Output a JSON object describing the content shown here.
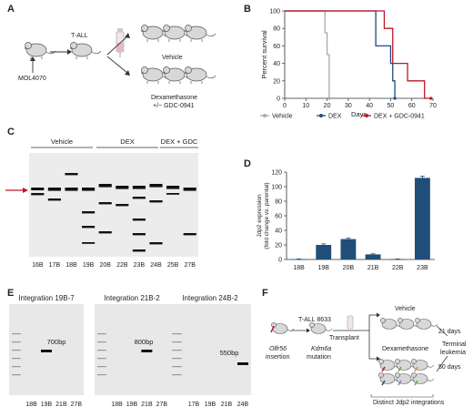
{
  "panels": {
    "A": "A",
    "B": "B",
    "C": "C",
    "D": "D",
    "E": "E",
    "F": "F"
  },
  "panelA": {
    "mol": "MOL4070",
    "tall": "T-ALL",
    "vehicle": "Vehicle",
    "dex": "Dexamethasone",
    "gdc": "+/− GDC-0941"
  },
  "chart_data": [
    {
      "type": "line",
      "ylabel": "Percent survival",
      "xlabel": "Days",
      "xlim": [
        0,
        70
      ],
      "ylim": [
        0,
        100
      ],
      "xticks": [
        0,
        10,
        20,
        30,
        40,
        50,
        60,
        70
      ],
      "yticks": [
        0,
        20,
        40,
        60,
        80,
        100
      ],
      "series": [
        {
          "name": "Vehicle",
          "color": "#aaaaaa",
          "x": [
            0,
            19,
            19,
            20,
            20,
            21,
            21
          ],
          "y": [
            100,
            100,
            75,
            75,
            50,
            50,
            0
          ]
        },
        {
          "name": "DEX",
          "color": "#1f4e79",
          "x": [
            0,
            43,
            43,
            50,
            50,
            51,
            51,
            52,
            52
          ],
          "y": [
            100,
            100,
            60,
            60,
            40,
            40,
            20,
            20,
            0
          ]
        },
        {
          "name": "DEX + GDC-0941",
          "color": "#c0152a",
          "x": [
            0,
            47,
            47,
            51,
            51,
            53,
            53,
            58,
            58,
            66,
            66,
            69
          ],
          "y": [
            100,
            100,
            80,
            80,
            40,
            40,
            40,
            40,
            20,
            20,
            0,
            0
          ]
        }
      ]
    },
    {
      "type": "bar",
      "ylabel": "Jdp2 expression (fold change vs. parental)",
      "categories": [
        "18B",
        "19B",
        "20B",
        "21B",
        "22B",
        "23B"
      ],
      "values": [
        0.5,
        20,
        28,
        7,
        0.5,
        112
      ],
      "errors": [
        0.3,
        1.5,
        1.5,
        0.8,
        0.3,
        2.5
      ],
      "ylim": [
        0,
        120
      ],
      "yticks": [
        0,
        20,
        40,
        60,
        80,
        100,
        120
      ],
      "color": "#1f4e79"
    }
  ],
  "panelC": {
    "groups": [
      "Vehicle",
      "DEX",
      "DEX + GDC"
    ],
    "lanes": [
      "16B",
      "17B",
      "18B",
      "19B",
      "20B",
      "22B",
      "23B",
      "24B",
      "25B",
      "27B"
    ]
  },
  "panelE": {
    "titles": [
      "Integration 19B-7",
      "Integration 21B-2",
      "Integration 24B-2"
    ],
    "bands": [
      "700bp",
      "800bp",
      "550bp"
    ],
    "lanes1": [
      "18B",
      "19B",
      "21B",
      "27B"
    ],
    "lanes2": [
      "18B",
      "19B",
      "21B",
      "27B"
    ],
    "lanes3": [
      "17B",
      "19B",
      "21B",
      "24B"
    ]
  },
  "panelF": {
    "olfr": "Olfr56",
    "insertion": "insertion",
    "tall": "T-ALL 8633",
    "kdm": "Kdm6a",
    "mutation": "mutation",
    "transplant": "Transplant",
    "vehicle": "Vehicle",
    "dex": "Dexamethasone",
    "days21": "21 days",
    "days50": "50 days",
    "terminal1": "Terminal",
    "terminal2": "leukemia",
    "distinct": "Distinct Jdp2 integrations"
  },
  "colors": {
    "navy": "#1f4e79",
    "red": "#c0152a",
    "gray": "#aaaaaa"
  }
}
